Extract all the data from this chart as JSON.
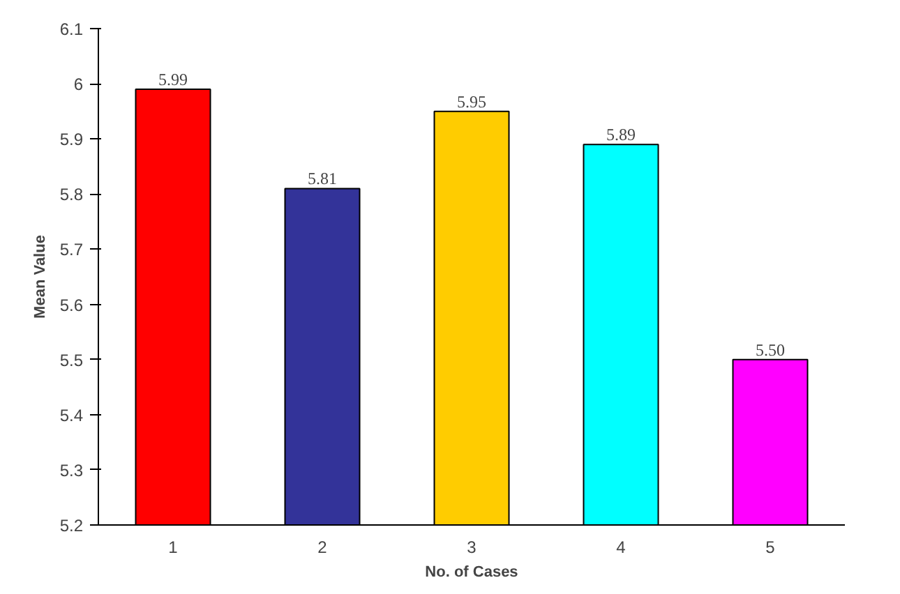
{
  "chart_data": {
    "type": "bar",
    "xlabel": "No. of Cases",
    "ylabel": "Mean Value",
    "categories": [
      "1",
      "2",
      "3",
      "4",
      "5"
    ],
    "values": [
      5.99,
      5.81,
      5.95,
      5.89,
      5.5
    ],
    "value_labels": [
      "5.99",
      "5.81",
      "5.95",
      "5.89",
      "5.50"
    ],
    "colors": [
      "#ff0000",
      "#333399",
      "#ffcc00",
      "#00ffff",
      "#ff00ff"
    ],
    "ylim": [
      5.2,
      6.1
    ],
    "yticks": [
      5.2,
      5.3,
      5.4,
      5.5,
      5.6,
      5.7,
      5.8,
      5.9,
      {
        "value": 6.0,
        "label": "6"
      },
      6.1
    ],
    "grid": false
  }
}
